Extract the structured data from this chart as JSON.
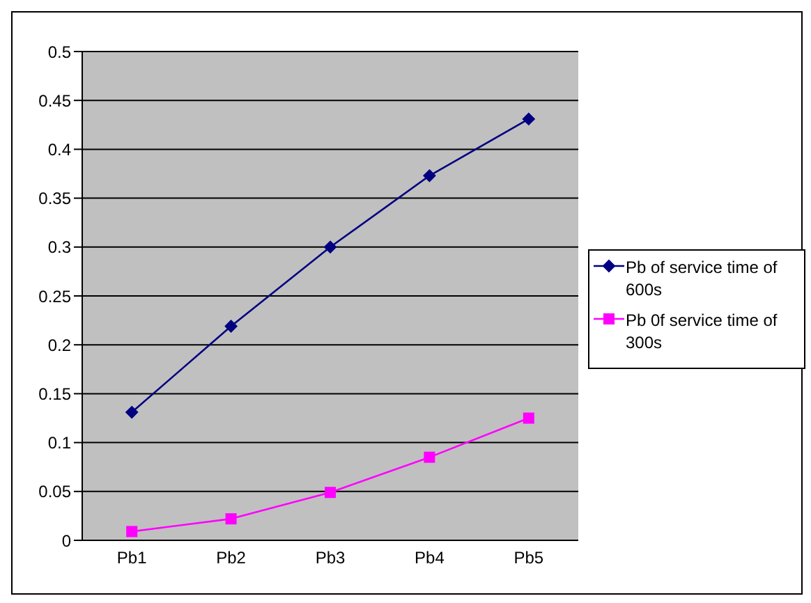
{
  "chart_data": {
    "type": "line",
    "categories": [
      "Pb1",
      "Pb2",
      "Pb3",
      "Pb4",
      "Pb5"
    ],
    "series": [
      {
        "name": "Pb of service time of 600s",
        "color": "#000080",
        "marker": "diamond",
        "values": [
          0.131,
          0.219,
          0.3,
          0.373,
          0.431
        ]
      },
      {
        "name": "Pb 0f service time of 300s",
        "color": "#ff00ff",
        "marker": "square",
        "values": [
          0.009,
          0.022,
          0.049,
          0.085,
          0.125
        ]
      }
    ],
    "ylim": [
      0,
      0.5
    ],
    "yticks": [
      0,
      0.05,
      0.1,
      0.15,
      0.2,
      0.25,
      0.3,
      0.35,
      0.4,
      0.45,
      0.5
    ],
    "grid": "y",
    "legend": "right"
  }
}
